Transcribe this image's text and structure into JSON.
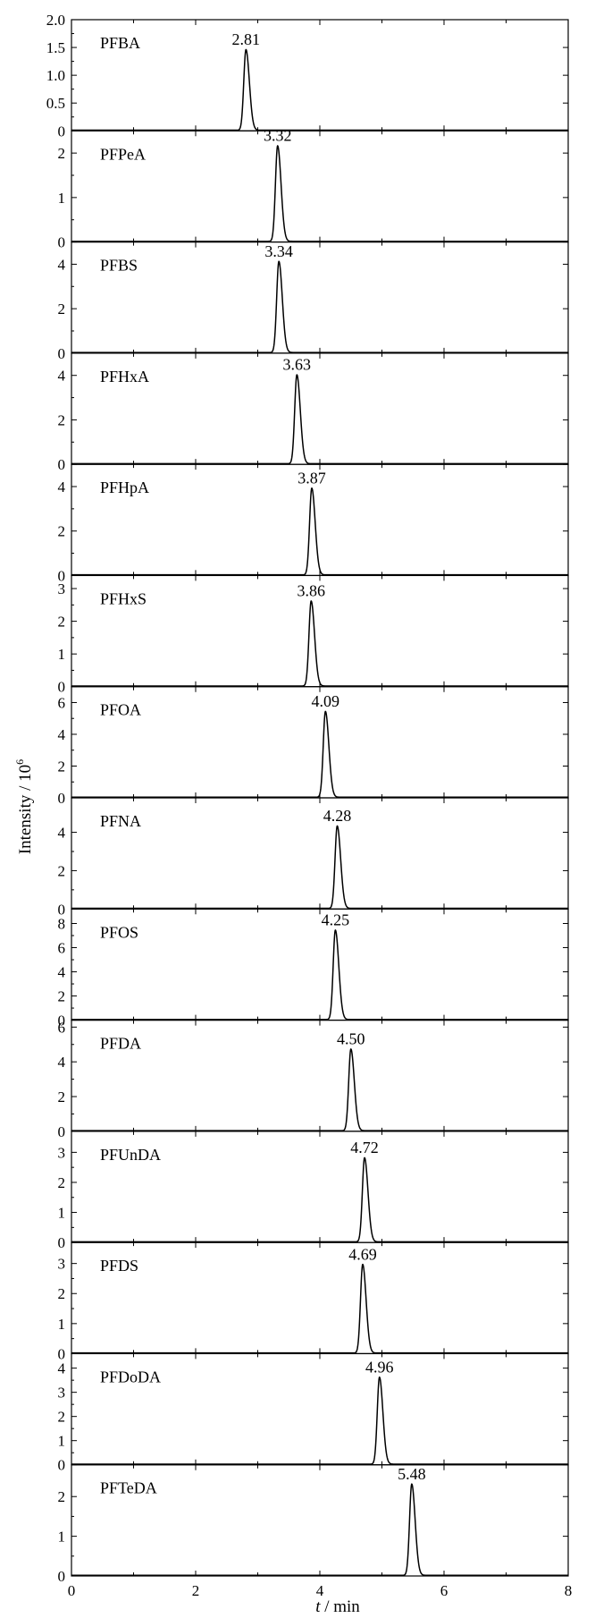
{
  "chart_data": {
    "type": "line",
    "xlabel_var": "t",
    "xlabel_rest": " / min",
    "ylabel_text": "Intensity / 10",
    "ylabel_exp": "6",
    "xlim": [
      0,
      8
    ],
    "xticks": [
      "0",
      "2",
      "4",
      "6",
      "8"
    ],
    "panels": [
      {
        "name": "PFBA",
        "rt": 2.81,
        "rt_label": "2.81",
        "peak": 1.45,
        "ylim": [
          0,
          2.0
        ],
        "yticks": [
          "0",
          "0.5",
          "1.0",
          "1.5",
          "2.0"
        ]
      },
      {
        "name": "PFPeA",
        "rt": 3.32,
        "rt_label": "3.32",
        "peak": 2.15,
        "ylim": [
          0,
          2.5
        ],
        "yticks": [
          "0",
          "1",
          "2"
        ]
      },
      {
        "name": "PFBS",
        "rt": 3.34,
        "rt_label": "3.34",
        "peak": 4.1,
        "ylim": [
          0,
          5.0
        ],
        "yticks": [
          "0",
          "2",
          "4"
        ]
      },
      {
        "name": "PFHxA",
        "rt": 3.63,
        "rt_label": "3.63",
        "peak": 4.0,
        "ylim": [
          0,
          5.0
        ],
        "yticks": [
          "0",
          "2",
          "4"
        ]
      },
      {
        "name": "PFHpA",
        "rt": 3.87,
        "rt_label": "3.87",
        "peak": 3.9,
        "ylim": [
          0,
          5.0
        ],
        "yticks": [
          "0",
          "2",
          "4"
        ]
      },
      {
        "name": "PFHxS",
        "rt": 3.86,
        "rt_label": "3.86",
        "peak": 2.6,
        "ylim": [
          0,
          3.4
        ],
        "yticks": [
          "0",
          "1",
          "2",
          "3"
        ]
      },
      {
        "name": "PFOA",
        "rt": 4.09,
        "rt_label": "4.09",
        "peak": 5.4,
        "ylim": [
          0,
          7.0
        ],
        "yticks": [
          "0",
          "2",
          "4",
          "6"
        ]
      },
      {
        "name": "PFNA",
        "rt": 4.28,
        "rt_label": "4.28",
        "peak": 4.3,
        "ylim": [
          0,
          5.8
        ],
        "yticks": [
          "0",
          "2",
          "4"
        ]
      },
      {
        "name": "PFOS",
        "rt": 4.25,
        "rt_label": "4.25",
        "peak": 7.4,
        "ylim": [
          0,
          9.2
        ],
        "yticks": [
          "0",
          "2",
          "4",
          "6",
          "8"
        ]
      },
      {
        "name": "PFDA",
        "rt": 4.5,
        "rt_label": "4.50",
        "peak": 4.7,
        "ylim": [
          0,
          6.4
        ],
        "yticks": [
          "0",
          "2",
          "4",
          "6"
        ]
      },
      {
        "name": "PFUnDA",
        "rt": 4.72,
        "rt_label": "4.72",
        "peak": 2.8,
        "ylim": [
          0,
          3.7
        ],
        "yticks": [
          "0",
          "1",
          "2",
          "3"
        ]
      },
      {
        "name": "PFDS",
        "rt": 4.69,
        "rt_label": "4.69",
        "peak": 2.95,
        "ylim": [
          0,
          3.7
        ],
        "yticks": [
          "0",
          "1",
          "2",
          "3"
        ]
      },
      {
        "name": "PFDoDA",
        "rt": 4.96,
        "rt_label": "4.96",
        "peak": 3.6,
        "ylim": [
          0,
          4.6
        ],
        "yticks": [
          "0",
          "1",
          "2",
          "3",
          "4"
        ]
      },
      {
        "name": "PFTeDA",
        "rt": 5.48,
        "rt_label": "5.48",
        "peak": 2.3,
        "ylim": [
          0,
          2.8
        ],
        "yticks": [
          "0",
          "1",
          "2"
        ]
      }
    ]
  }
}
